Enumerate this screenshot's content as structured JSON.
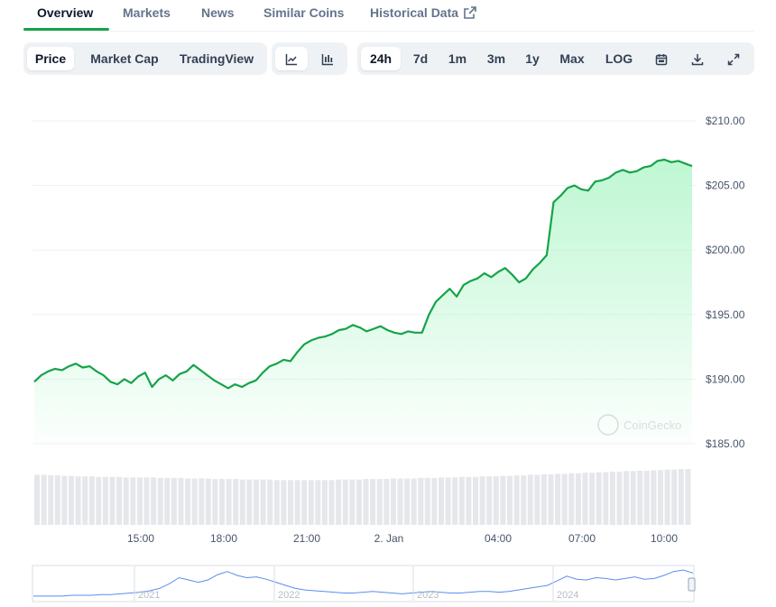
{
  "tabs": [
    {
      "label": "Overview",
      "active": true
    },
    {
      "label": "Markets"
    },
    {
      "label": "News"
    },
    {
      "label": "Similar Coins"
    },
    {
      "label": "Historical Data",
      "icon": "external-link-icon"
    }
  ],
  "metric_buttons": [
    {
      "label": "Price",
      "selected": true
    },
    {
      "label": "Market Cap"
    },
    {
      "label": "TradingView"
    }
  ],
  "chart_type_buttons": [
    {
      "icon": "line-chart-icon",
      "selected": true
    },
    {
      "icon": "candlestick-chart-icon"
    }
  ],
  "range_buttons": [
    {
      "label": "24h",
      "selected": true
    },
    {
      "label": "7d"
    },
    {
      "label": "1m"
    },
    {
      "label": "3m"
    },
    {
      "label": "1y"
    },
    {
      "label": "Max"
    },
    {
      "label": "LOG"
    }
  ],
  "tool_icons": [
    "calendar-icon",
    "download-icon",
    "expand-icon"
  ],
  "watermark": "CoinGecko",
  "colors": {
    "line": "#16a34a",
    "fill_top": "#bbf7d0",
    "volume": "#e5e7eb",
    "active_tab": "#16a34a"
  },
  "chart_data": {
    "type": "area",
    "x_ticks": [
      "15:00",
      "18:00",
      "21:00",
      "2. Jan",
      "04:00",
      "07:00",
      "10:00"
    ],
    "y_ticks": [
      "$210.00",
      "$205.00",
      "$200.00",
      "$195.00",
      "$190.00",
      "$185.00"
    ],
    "ylim": [
      185,
      210
    ],
    "series": [
      {
        "values": [
          189.8,
          190.3,
          190.6,
          190.8,
          190.7,
          191.0,
          191.2,
          190.9,
          191.0,
          190.6,
          190.3,
          189.8,
          189.6,
          190.0,
          189.7,
          190.2,
          190.5,
          189.4,
          190.0,
          190.3,
          189.9,
          190.4,
          190.6,
          191.1,
          190.7,
          190.3,
          189.9,
          189.6,
          189.3,
          189.6,
          189.4,
          189.7,
          189.9,
          190.5,
          191.0,
          191.2,
          191.5,
          191.4,
          192.1,
          192.7,
          193.0,
          193.2,
          193.3,
          193.5,
          193.8,
          193.9,
          194.2,
          194.0,
          193.7,
          193.9,
          194.1,
          193.8,
          193.6,
          193.5,
          193.7,
          193.6,
          193.6,
          195.0,
          196.0,
          196.5,
          197.0,
          196.4,
          197.3,
          197.6,
          197.8,
          198.2,
          197.9,
          198.3,
          198.6,
          198.1,
          197.5,
          197.8,
          198.5,
          199.0,
          199.6,
          203.7,
          204.2,
          204.8,
          205.0,
          204.7,
          204.6,
          205.3,
          205.4,
          205.6,
          206.0,
          206.2,
          206.0,
          206.1,
          206.4,
          206.5,
          206.9,
          207.0,
          206.8,
          206.9,
          206.7,
          206.5
        ],
        "volumes": [
          0.95,
          0.95,
          0.94,
          0.94,
          0.93,
          0.93,
          0.92,
          0.92,
          0.92,
          0.91,
          0.91,
          0.91,
          0.91,
          0.9,
          0.9,
          0.9,
          0.9,
          0.9,
          0.89,
          0.89,
          0.89,
          0.89,
          0.88,
          0.88,
          0.88,
          0.88,
          0.87,
          0.87,
          0.87,
          0.87,
          0.86,
          0.86,
          0.86,
          0.86,
          0.86,
          0.85,
          0.85,
          0.85,
          0.85,
          0.85,
          0.85,
          0.85,
          0.85,
          0.85,
          0.86,
          0.86,
          0.86,
          0.86,
          0.87,
          0.87,
          0.87,
          0.87,
          0.88,
          0.88,
          0.88,
          0.88,
          0.89,
          0.89,
          0.89,
          0.9,
          0.9,
          0.9,
          0.91,
          0.91,
          0.91,
          0.92,
          0.92,
          0.92,
          0.93,
          0.93,
          0.94,
          0.94,
          0.95,
          0.95,
          0.96,
          0.96,
          0.97,
          0.97,
          0.98,
          0.98,
          0.99,
          0.99,
          1.0,
          1.0,
          1.01,
          1.01,
          1.02,
          1.02,
          1.03,
          1.03,
          1.04,
          1.04,
          1.05,
          1.05,
          1.06,
          1.06
        ]
      }
    ]
  },
  "navigator": {
    "year_labels": [
      "2021",
      "2022",
      "2023",
      "2024"
    ],
    "values": [
      6,
      6,
      6,
      6,
      7,
      7,
      7,
      8,
      8,
      9,
      10,
      11,
      13,
      16,
      22,
      30,
      27,
      24,
      27,
      34,
      38,
      33,
      30,
      31,
      28,
      24,
      20,
      16,
      14,
      13,
      12,
      11,
      10,
      10,
      11,
      12,
      11,
      10,
      9,
      10,
      11,
      12,
      11,
      10,
      10,
      11,
      12,
      12,
      11,
      12,
      14,
      16,
      18,
      20,
      26,
      32,
      28,
      27,
      30,
      29,
      27,
      29,
      31,
      28,
      29,
      33,
      38,
      40,
      36
    ]
  }
}
